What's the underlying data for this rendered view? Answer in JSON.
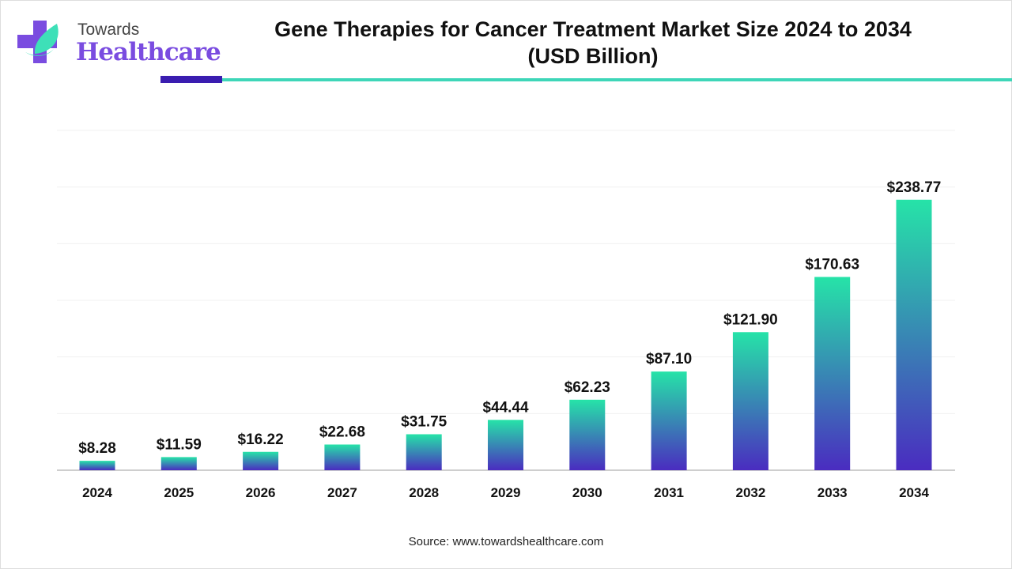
{
  "logo": {
    "line1": "Towards",
    "line2": "Healthcare"
  },
  "title_line1": "Gene Therapies for Cancer Treatment Market Size 2024 to 2034",
  "title_line2": "(USD Billion)",
  "source": "Source: www.towardshealthcare.com",
  "colors": {
    "bar_top": "#26e3a8",
    "bar_bottom": "#4a2cc0",
    "accent_dark": "#3a1db0",
    "accent_light": "#3ed6b8"
  },
  "chart_data": {
    "type": "bar",
    "title": "Gene Therapies for Cancer Treatment Market Size 2024 to 2034 (USD Billion)",
    "xlabel": "",
    "ylabel": "",
    "categories": [
      "2024",
      "2025",
      "2026",
      "2027",
      "2028",
      "2029",
      "2030",
      "2031",
      "2032",
      "2033",
      "2034"
    ],
    "values": [
      8.28,
      11.59,
      16.22,
      22.68,
      31.75,
      44.44,
      62.23,
      87.1,
      121.9,
      170.63,
      238.77
    ],
    "labels": [
      "$8.28",
      "$11.59",
      "$16.22",
      "$22.68",
      "$31.75",
      "$44.44",
      "$62.23",
      "$87.10",
      "$121.90",
      "$170.63",
      "$238.77"
    ],
    "ylim": [
      0,
      300
    ],
    "grid": true,
    "legend": "none"
  }
}
